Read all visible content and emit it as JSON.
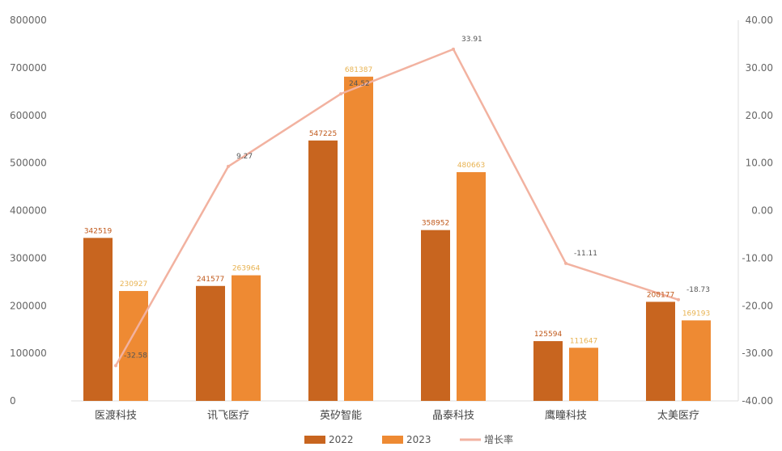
{
  "chart_data": {
    "type": "bar",
    "categories": [
      "医渡科技",
      "讯飞医疗",
      "英矽智能",
      "晶泰科技",
      "鹰瞳科技",
      "太美医疗"
    ],
    "series": [
      {
        "name": "2022",
        "type": "bar",
        "axis": "left",
        "color": "#c8651f",
        "label_color": "#c0581a",
        "values": [
          342519,
          241577,
          547225,
          358952,
          125594,
          208177
        ],
        "labels": [
          "342519",
          "241577",
          "547225",
          "358952",
          "125594",
          "208177"
        ]
      },
      {
        "name": "2023",
        "type": "bar",
        "axis": "left",
        "color": "#ee8a33",
        "label_color": "#e8b352",
        "values": [
          230927,
          263964,
          681387,
          480663,
          111647,
          169193
        ],
        "labels": [
          "230927",
          "263964",
          "681387",
          "480663",
          "111647",
          "169193"
        ]
      },
      {
        "name": "增长率",
        "type": "line",
        "axis": "right",
        "color": "#f2b2a0",
        "label_color": "#555555",
        "values": [
          -32.58,
          9.27,
          24.52,
          33.91,
          -11.11,
          -18.73
        ],
        "labels": [
          "-32.58",
          "9.27",
          "24.52",
          "33.91",
          "-11.11",
          "-18.73"
        ]
      }
    ],
    "y_left": {
      "min": 0,
      "max": 800000,
      "ticks": [
        "0",
        "100000",
        "200000",
        "300000",
        "400000",
        "500000",
        "600000",
        "700000",
        "800000"
      ]
    },
    "y_right": {
      "min": -40,
      "max": 40,
      "ticks": [
        "-40.00",
        "-30.00",
        "-20.00",
        "-10.00",
        "0.00",
        "10.00",
        "20.00",
        "30.00",
        "40.00"
      ]
    },
    "grid": false,
    "legend": {
      "position": "bottom-center",
      "items": [
        "2022",
        "2023",
        "增长率"
      ]
    },
    "axis_color": "#dddddd"
  }
}
